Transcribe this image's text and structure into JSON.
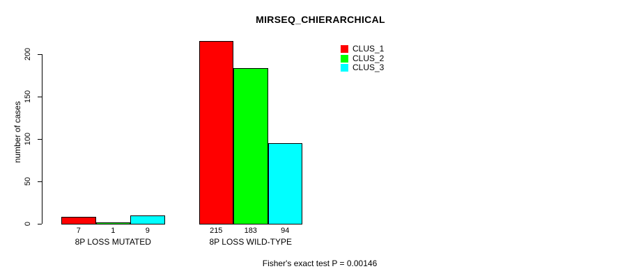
{
  "title": "MIRSEQ_CHIERARCHICAL",
  "footer_annotation": "Fisher's exact test P = 0.00146",
  "chart_data": {
    "type": "bar",
    "title": "MIRSEQ_CHIERARCHICAL",
    "xlabel": "",
    "ylabel": "number of cases",
    "categories": [
      "8P LOSS MUTATED",
      "8P LOSS WILD-TYPE"
    ],
    "series": [
      {
        "name": "CLUS_1",
        "color": "#ff0000",
        "values": [
          7,
          215
        ]
      },
      {
        "name": "CLUS_2",
        "color": "#00ff00",
        "values": [
          1,
          183
        ]
      },
      {
        "name": "CLUS_3",
        "color": "#00ffff",
        "values": [
          9,
          94
        ]
      }
    ],
    "bar_value_labels": [
      [
        7,
        1,
        9
      ],
      [
        215,
        183,
        94
      ]
    ],
    "yticks": [
      0,
      50,
      100,
      150,
      200
    ],
    "ylim": [
      0,
      220
    ],
    "grid": false,
    "legend_position": "top-right",
    "legend_entries": [
      {
        "label": "CLUS_1",
        "color": "#ff0000"
      },
      {
        "label": "CLUS_2",
        "color": "#00ff00"
      },
      {
        "label": "CLUS_3",
        "color": "#00ffff"
      }
    ],
    "annotation": "Fisher's exact test P = 0.00146",
    "axis_color": "#000000",
    "bar_border_color": "#000000"
  }
}
